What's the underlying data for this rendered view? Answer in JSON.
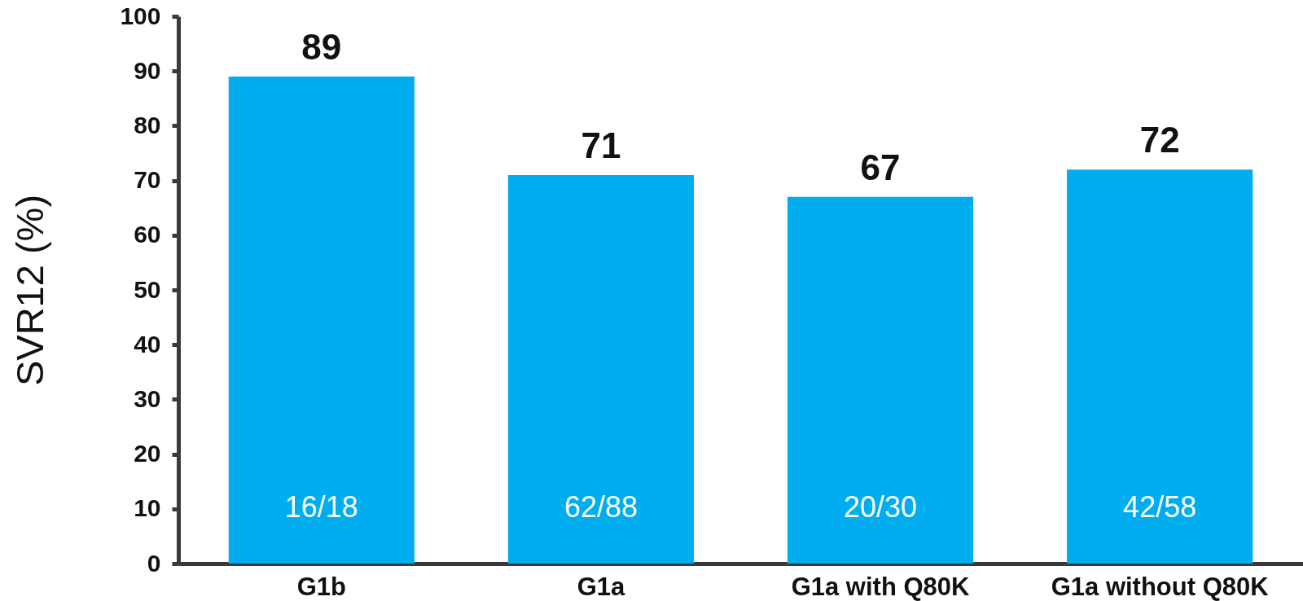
{
  "chart_data": {
    "type": "bar",
    "categories": [
      "G1b",
      "G1a",
      "G1a with Q80K",
      "G1a without Q80K"
    ],
    "values": [
      89,
      71,
      67,
      72
    ],
    "color": "#00aeef",
    "data_labels": true,
    "ylabel": "SVR12 (%)",
    "ylim": [
      0,
      100
    ],
    "yticks": [
      0,
      10,
      20,
      30,
      40,
      50,
      60,
      70,
      80,
      90,
      100
    ],
    "grid": false,
    "annotations": [
      "16/18",
      "62/88",
      "20/30",
      "42/58"
    ]
  }
}
